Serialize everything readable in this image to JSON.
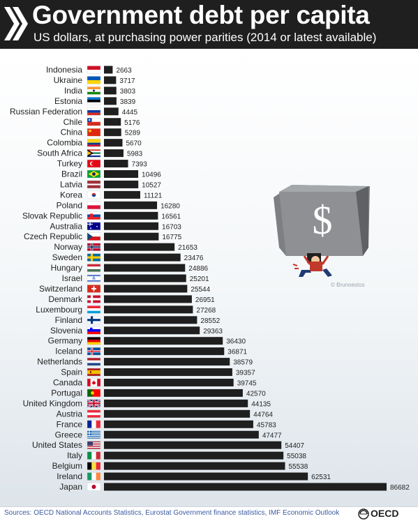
{
  "header": {
    "title": "Government debt per capita",
    "subtitle": "US dollars, at purchasing power parities (2014 or latest available)"
  },
  "footer": {
    "source": "Sources: OECD National Accounts Statistics, Eurostat Government finance statistics, IMF Economic Outlook",
    "logo_text": "OECD"
  },
  "illustration": {
    "credit": "© Brunoestos",
    "symbol": "$",
    "icon": "dollar-weight-carrier-icon"
  },
  "colors": {
    "bar": "#1f1f1f",
    "header_bg": "#1f1f1f",
    "accent_blue": "#3a5aa0"
  },
  "chart_data": {
    "type": "bar",
    "orientation": "horizontal",
    "categories": [
      "Indonesia",
      "Ukraine",
      "India",
      "Estonia",
      "Russian Federation",
      "Chile",
      "China",
      "Colombia",
      "South Africa",
      "Turkey",
      "Brazil",
      "Latvia",
      "Korea",
      "Poland",
      "Slovak Republic",
      "Australia",
      "Czech Republic",
      "Norway",
      "Sweden",
      "Hungary",
      "Israel",
      "Switzerland",
      "Denmark",
      "Luxembourg",
      "Finland",
      "Slovenia",
      "Germany",
      "Iceland",
      "Netherlands",
      "Spain",
      "Canada",
      "Portugal",
      "United Kingdom",
      "Austria",
      "France",
      "Greece",
      "United States",
      "Italy",
      "Belgium",
      "Ireland",
      "Japan"
    ],
    "values": [
      2663,
      3717,
      3803,
      3839,
      4445,
      5176,
      5289,
      5670,
      5983,
      7393,
      10496,
      10527,
      11121,
      16280,
      16561,
      16703,
      16775,
      21653,
      23476,
      24886,
      25201,
      25544,
      26951,
      27268,
      28552,
      29363,
      36430,
      36871,
      38579,
      39357,
      39745,
      42570,
      44135,
      44764,
      45783,
      47477,
      54407,
      55038,
      55538,
      62531,
      86682
    ],
    "flags": [
      "indonesia-flag-icon",
      "ukraine-flag-icon",
      "india-flag-icon",
      "estonia-flag-icon",
      "russia-flag-icon",
      "chile-flag-icon",
      "china-flag-icon",
      "colombia-flag-icon",
      "south-africa-flag-icon",
      "turkey-flag-icon",
      "brazil-flag-icon",
      "latvia-flag-icon",
      "korea-flag-icon",
      "poland-flag-icon",
      "slovakia-flag-icon",
      "australia-flag-icon",
      "czech-flag-icon",
      "norway-flag-icon",
      "sweden-flag-icon",
      "hungary-flag-icon",
      "israel-flag-icon",
      "switzerland-flag-icon",
      "denmark-flag-icon",
      "luxembourg-flag-icon",
      "finland-flag-icon",
      "slovenia-flag-icon",
      "germany-flag-icon",
      "iceland-flag-icon",
      "netherlands-flag-icon",
      "spain-flag-icon",
      "canada-flag-icon",
      "portugal-flag-icon",
      "uk-flag-icon",
      "austria-flag-icon",
      "france-flag-icon",
      "greece-flag-icon",
      "usa-flag-icon",
      "italy-flag-icon",
      "belgium-flag-icon",
      "ireland-flag-icon",
      "japan-flag-icon"
    ],
    "title": "Government debt per capita",
    "subtitle": "US dollars, at purchasing power parities (2014 or latest available)",
    "xlim": [
      0,
      86682
    ],
    "grid": false,
    "legend": "none"
  }
}
